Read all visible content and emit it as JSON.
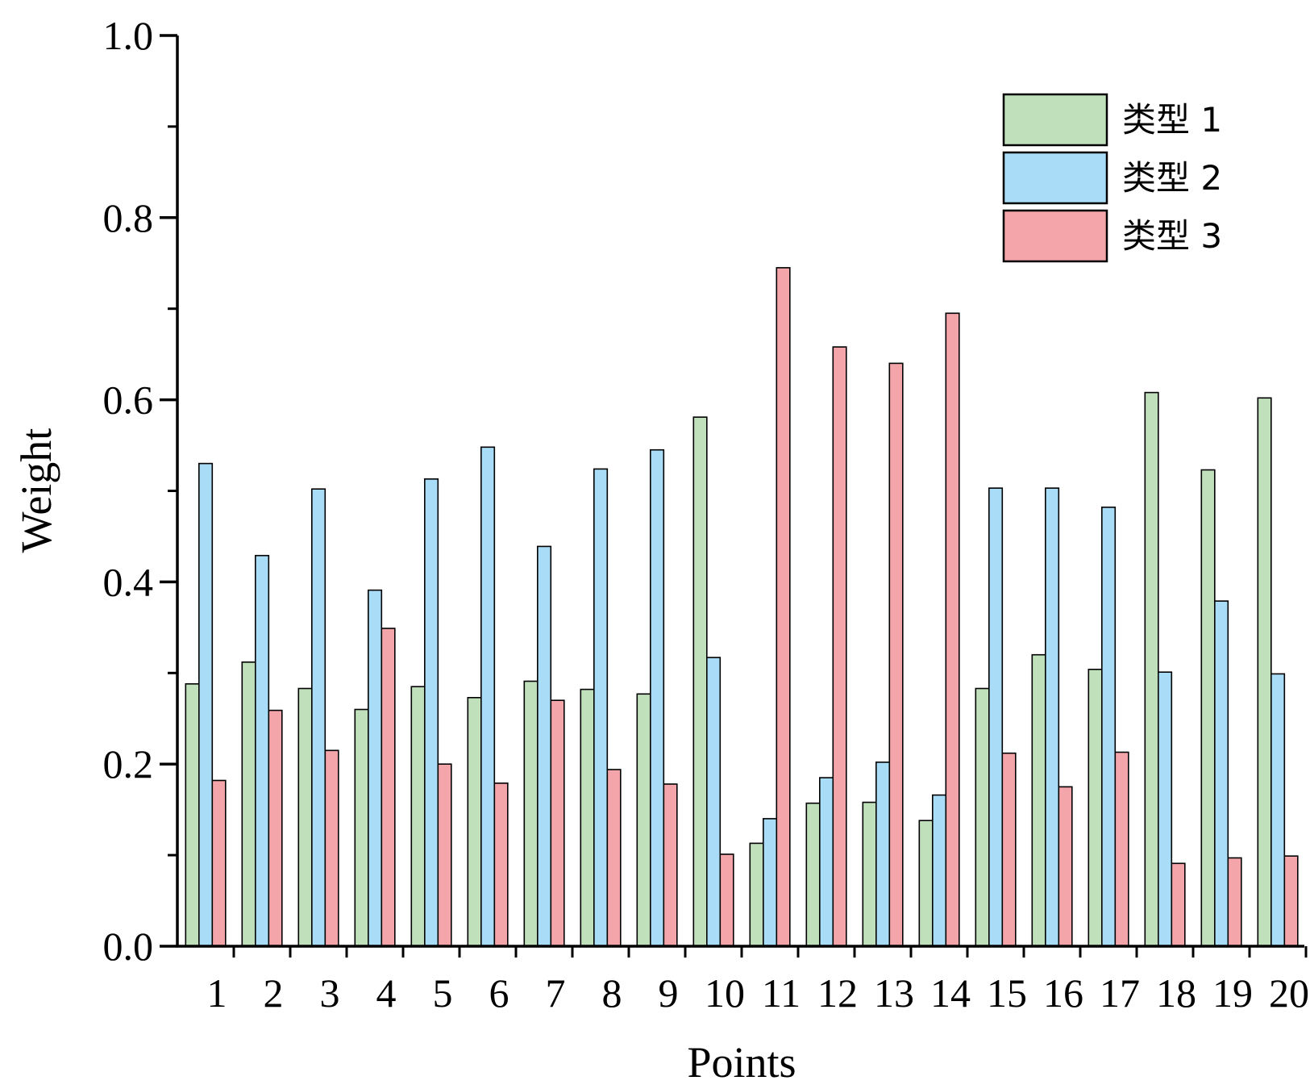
{
  "chart_data": {
    "type": "bar",
    "xlabel": "Points",
    "ylabel": "Weight",
    "ylim": [
      0,
      1.0
    ],
    "yticks": [
      "0.0",
      "0.2",
      "0.4",
      "0.6",
      "0.8",
      "1.0"
    ],
    "categories": [
      "1",
      "2",
      "3",
      "4",
      "5",
      "6",
      "7",
      "8",
      "9",
      "10",
      "11",
      "12",
      "13",
      "14",
      "15",
      "16",
      "17",
      "18",
      "19",
      "20"
    ],
    "grid": false,
    "legend_position": "top-right",
    "series": [
      {
        "name": "类型 1",
        "color": "#bfe0bb",
        "values": [
          0.288,
          0.312,
          0.283,
          0.26,
          0.285,
          0.273,
          0.291,
          0.282,
          0.277,
          0.581,
          0.113,
          0.157,
          0.158,
          0.138,
          0.283,
          0.32,
          0.304,
          0.608,
          0.523,
          0.602
        ]
      },
      {
        "name": "类型 2",
        "color": "#a9dcf6",
        "values": [
          0.53,
          0.429,
          0.502,
          0.391,
          0.513,
          0.548,
          0.439,
          0.524,
          0.545,
          0.317,
          0.14,
          0.185,
          0.202,
          0.166,
          0.503,
          0.503,
          0.482,
          0.301,
          0.379,
          0.299
        ]
      },
      {
        "name": "类型 3",
        "color": "#f3a5aa",
        "values": [
          0.182,
          0.259,
          0.215,
          0.349,
          0.2,
          0.179,
          0.27,
          0.194,
          0.178,
          0.101,
          0.745,
          0.658,
          0.64,
          0.695,
          0.212,
          0.175,
          0.213,
          0.091,
          0.097,
          0.099
        ]
      }
    ]
  }
}
